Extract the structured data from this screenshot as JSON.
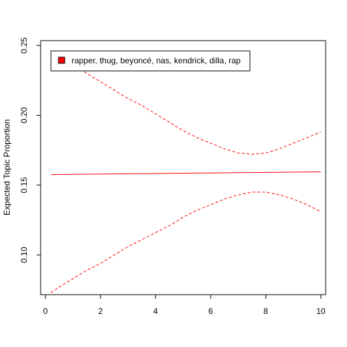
{
  "chart_data": {
    "type": "line",
    "title": "",
    "xlabel": "",
    "ylabel": "Expected Topic Proportion",
    "xlim": [
      0,
      10
    ],
    "ylim": [
      0.075,
      0.25
    ],
    "x_ticks": [
      0,
      2,
      4,
      6,
      8,
      10
    ],
    "x_tick_labels": [
      "0",
      "2",
      "4",
      "6",
      "8",
      "10"
    ],
    "y_ticks": [
      0.1,
      0.15,
      0.2,
      0.25
    ],
    "y_tick_labels": [
      "0.10",
      "0.15",
      "0.20",
      "0.25"
    ],
    "grid": false,
    "legend": {
      "position": "top-left",
      "entries": [
        {
          "label": "rapper, thug, beyoncé, nas, kendrick, dilla, rap",
          "color": "#ff0000"
        }
      ]
    },
    "x": [
      0.2,
      0.5,
      1.0,
      1.5,
      2.0,
      2.5,
      3.0,
      3.5,
      4.0,
      4.5,
      5.0,
      5.5,
      6.0,
      6.5,
      7.0,
      7.5,
      8.0,
      8.5,
      9.0,
      9.5,
      10.0
    ],
    "series": [
      {
        "role": "estimate",
        "color": "#ff0000",
        "style": "solid",
        "values": [
          0.1575,
          0.1576,
          0.1577,
          0.1578,
          0.1579,
          0.158,
          0.1581,
          0.1582,
          0.1583,
          0.1584,
          0.1585,
          0.1586,
          0.1587,
          0.1588,
          0.1589,
          0.159,
          0.1591,
          0.1592,
          0.1593,
          0.1594,
          0.1595
        ]
      },
      {
        "role": "upper-bound",
        "color": "#ff0000",
        "style": "dashed",
        "values": [
          0.245,
          0.241,
          0.236,
          0.23,
          0.224,
          0.218,
          0.212,
          0.207,
          0.201,
          0.195,
          0.189,
          0.184,
          0.18,
          0.176,
          0.173,
          0.172,
          0.173,
          0.176,
          0.18,
          0.184,
          0.188
        ]
      },
      {
        "role": "lower-bound",
        "color": "#ff0000",
        "style": "dashed",
        "values": [
          0.073,
          0.077,
          0.083,
          0.089,
          0.094,
          0.1,
          0.106,
          0.111,
          0.116,
          0.121,
          0.127,
          0.132,
          0.136,
          0.14,
          0.143,
          0.145,
          0.145,
          0.143,
          0.14,
          0.136,
          0.131
        ]
      }
    ]
  }
}
